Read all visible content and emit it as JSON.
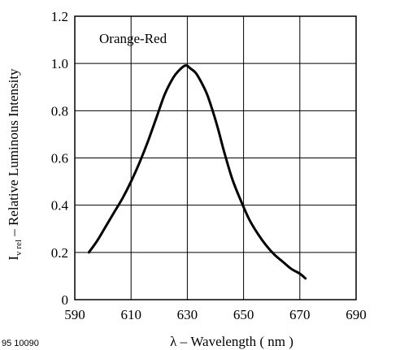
{
  "figure_code": "95 10090",
  "chart_data": {
    "type": "line",
    "xlabel": "λ – Wavelength ( nm )",
    "ylabel_main": "I",
    "ylabel_sub": "v rel",
    "ylabel_rest": " – Relative Luminous Intensity",
    "xlim": [
      590,
      690
    ],
    "ylim": [
      0,
      1.2
    ],
    "x_ticks": [
      590,
      610,
      630,
      650,
      670,
      690
    ],
    "y_ticks": [
      "0",
      "0.2",
      "0.4",
      "0.6",
      "0.8",
      "1.0",
      "1.2"
    ],
    "y_tick_values": [
      0,
      0.2,
      0.4,
      0.6,
      0.8,
      1.0,
      1.2
    ],
    "grid": true,
    "series": [
      {
        "name": "Orange-Red",
        "color": "#000000",
        "x": [
          595,
          598,
          601,
          604,
          607,
          610,
          613,
          616,
          619,
          622,
          625,
          627,
          629,
          630,
          631,
          633,
          635,
          637,
          639,
          641,
          643,
          646,
          649,
          652,
          655,
          658,
          661,
          664,
          667,
          670,
          672
        ],
        "y": [
          0.2,
          0.25,
          0.31,
          0.37,
          0.43,
          0.5,
          0.58,
          0.67,
          0.77,
          0.87,
          0.94,
          0.97,
          0.99,
          0.99,
          0.98,
          0.96,
          0.92,
          0.87,
          0.8,
          0.72,
          0.63,
          0.51,
          0.42,
          0.34,
          0.28,
          0.23,
          0.19,
          0.16,
          0.13,
          0.11,
          0.09
        ]
      }
    ]
  }
}
